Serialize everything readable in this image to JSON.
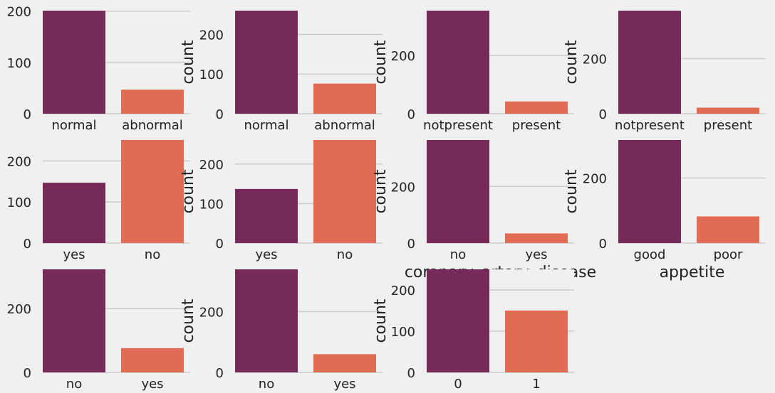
{
  "colors": {
    "background": "#f0f0f0",
    "grid": "#cbcbcb",
    "bar_primary": "#772a58",
    "bar_secondary": "#e06c54"
  },
  "chart_data": [
    {
      "type": "bar",
      "categories": [
        "normal",
        "abnormal"
      ],
      "values": [
        201,
        47
      ],
      "ylim": [
        0,
        201
      ],
      "yticks": [
        0,
        100,
        200
      ],
      "ylabel": "",
      "xlabel": ""
    },
    {
      "type": "bar",
      "categories": [
        "normal",
        "abnormal"
      ],
      "values": [
        270,
        76
      ],
      "ylim": [
        0,
        260
      ],
      "yticks": [
        0,
        100,
        200
      ],
      "ylabel": "count",
      "xlabel": ""
    },
    {
      "type": "bar",
      "categories": [
        "notpresent",
        "present"
      ],
      "values": [
        354,
        42
      ],
      "ylim": [
        0,
        354
      ],
      "yticks": [
        0,
        200
      ],
      "ylabel": "count",
      "xlabel": ""
    },
    {
      "type": "bar",
      "categories": [
        "notpresent",
        "present"
      ],
      "values": [
        374,
        22
      ],
      "ylim": [
        0,
        374
      ],
      "yticks": [
        0,
        200
      ],
      "ylabel": "count",
      "xlabel": ""
    },
    {
      "type": "bar",
      "categories": [
        "yes",
        "no"
      ],
      "values": [
        147,
        251
      ],
      "ylim": [
        0,
        251
      ],
      "yticks": [
        0,
        100,
        200
      ],
      "ylabel": "",
      "xlabel": ""
    },
    {
      "type": "bar",
      "categories": [
        "yes",
        "no"
      ],
      "values": [
        137,
        261
      ],
      "ylim": [
        0,
        261
      ],
      "yticks": [
        0,
        100,
        200
      ],
      "ylabel": "count",
      "xlabel": ""
    },
    {
      "type": "bar",
      "categories": [
        "no",
        "yes"
      ],
      "values": [
        364,
        34
      ],
      "ylim": [
        0,
        364
      ],
      "yticks": [
        0,
        200
      ],
      "ylabel": "count",
      "xlabel": "coronary_artery_disease"
    },
    {
      "type": "bar",
      "categories": [
        "good",
        "poor"
      ],
      "values": [
        317,
        82
      ],
      "ylim": [
        0,
        317
      ],
      "yticks": [
        0,
        200
      ],
      "ylabel": "count",
      "xlabel": "appetite"
    },
    {
      "type": "bar",
      "categories": [
        "no",
        "yes"
      ],
      "values": [
        323,
        76
      ],
      "ylim": [
        0,
        323
      ],
      "yticks": [
        0,
        200
      ],
      "ylabel": "",
      "xlabel": ""
    },
    {
      "type": "bar",
      "categories": [
        "no",
        "yes"
      ],
      "values": [
        339,
        60
      ],
      "ylim": [
        0,
        339
      ],
      "yticks": [
        0,
        200
      ],
      "ylabel": "count",
      "xlabel": ""
    },
    {
      "type": "bar",
      "categories": [
        "0",
        "1"
      ],
      "values": [
        250,
        150
      ],
      "ylim": [
        0,
        250
      ],
      "yticks": [
        0,
        100,
        200
      ],
      "ylabel": "count",
      "xlabel": ""
    }
  ]
}
